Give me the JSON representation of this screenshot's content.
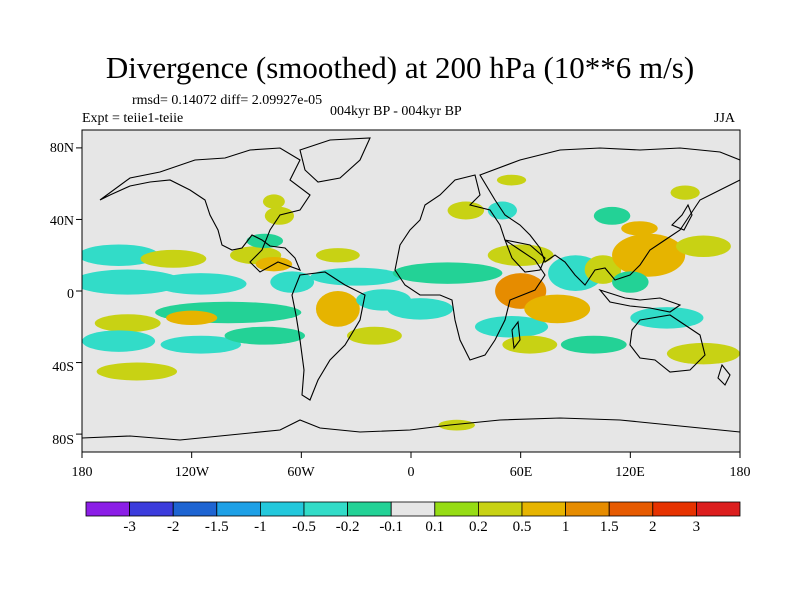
{
  "title": "Divergence (smoothed) at 200 hPa (10**6 m/s)",
  "stats_text": "rmsd= 0.14072 diff= 2.09927e-05",
  "expt_text": "Expt = teiie1-teiie",
  "period_text": "004kyr BP - 004kyr BP",
  "season_text": "JJA",
  "lat_ticks": [
    "80N",
    "40N",
    "0",
    "40S",
    "80S"
  ],
  "lon_ticks": [
    "180",
    "120W",
    "60W",
    "0",
    "60E",
    "120E",
    "180"
  ],
  "colorbar": {
    "labels": [
      "-3",
      "-2",
      "-1.5",
      "-1",
      "-0.5",
      "-0.2",
      "-0.1",
      "0.1",
      "0.2",
      "0.5",
      "1",
      "1.5",
      "2",
      "3"
    ],
    "colors": [
      "#8b1ee6",
      "#3c3cdc",
      "#1e64d2",
      "#1ea0e6",
      "#23c8dc",
      "#32dcc8",
      "#23d296",
      "#e6e6e6",
      "#96dc14",
      "#c8d214",
      "#e6b400",
      "#e68c00",
      "#e65a00",
      "#e63200",
      "#dc1e1e"
    ]
  },
  "map_colors": {
    "background": "#e6e6e6",
    "coast": "#000000"
  },
  "regions": [
    {
      "lon": -160,
      "lat": 20,
      "rx": 22,
      "ry": 6,
      "value": -0.5
    },
    {
      "lon": -130,
      "lat": 18,
      "rx": 18,
      "ry": 5,
      "value": 0.2
    },
    {
      "lon": -155,
      "lat": 5,
      "rx": 30,
      "ry": 7,
      "value": -0.5
    },
    {
      "lon": -115,
      "lat": 4,
      "rx": 25,
      "ry": 6,
      "value": -0.5
    },
    {
      "lon": -100,
      "lat": -12,
      "rx": 40,
      "ry": 6,
      "value": -0.2
    },
    {
      "lon": -155,
      "lat": -18,
      "rx": 18,
      "ry": 5,
      "value": 0.2
    },
    {
      "lon": -120,
      "lat": -15,
      "rx": 14,
      "ry": 4,
      "value": 0.5
    },
    {
      "lon": -160,
      "lat": -28,
      "rx": 20,
      "ry": 6,
      "value": -0.5
    },
    {
      "lon": -115,
      "lat": -30,
      "rx": 22,
      "ry": 5,
      "value": -0.5
    },
    {
      "lon": -80,
      "lat": -25,
      "rx": 22,
      "ry": 5,
      "value": -0.2
    },
    {
      "lon": -150,
      "lat": -45,
      "rx": 22,
      "ry": 5,
      "value": 0.2
    },
    {
      "lon": -85,
      "lat": 20,
      "rx": 14,
      "ry": 5,
      "value": 0.2
    },
    {
      "lon": -75,
      "lat": 15,
      "rx": 10,
      "ry": 4,
      "value": 0.5
    },
    {
      "lon": -65,
      "lat": 5,
      "rx": 12,
      "ry": 6,
      "value": -0.5
    },
    {
      "lon": -72,
      "lat": 42,
      "rx": 8,
      "ry": 5,
      "value": 0.2
    },
    {
      "lon": -80,
      "lat": 28,
      "rx": 10,
      "ry": 4,
      "value": -0.2
    },
    {
      "lon": -40,
      "lat": 20,
      "rx": 12,
      "ry": 4,
      "value": 0.2
    },
    {
      "lon": -30,
      "lat": 8,
      "rx": 25,
      "ry": 5,
      "value": -0.5
    },
    {
      "lon": -40,
      "lat": -10,
      "rx": 12,
      "ry": 10,
      "value": 0.5
    },
    {
      "lon": -15,
      "lat": -5,
      "rx": 15,
      "ry": 6,
      "value": -0.5
    },
    {
      "lon": -20,
      "lat": -25,
      "rx": 15,
      "ry": 5,
      "value": 0.2
    },
    {
      "lon": 5,
      "lat": -10,
      "rx": 18,
      "ry": 6,
      "value": -0.5
    },
    {
      "lon": 20,
      "lat": 10,
      "rx": 30,
      "ry": 6,
      "value": -0.2
    },
    {
      "lon": 30,
      "lat": 45,
      "rx": 10,
      "ry": 5,
      "value": 0.2
    },
    {
      "lon": 50,
      "lat": 45,
      "rx": 8,
      "ry": 5,
      "value": -0.5
    },
    {
      "lon": 60,
      "lat": 20,
      "rx": 18,
      "ry": 6,
      "value": 0.2
    },
    {
      "lon": 60,
      "lat": 0,
      "rx": 14,
      "ry": 10,
      "value": 1
    },
    {
      "lon": 55,
      "lat": -20,
      "rx": 20,
      "ry": 6,
      "value": -0.5
    },
    {
      "lon": 65,
      "lat": -30,
      "rx": 15,
      "ry": 5,
      "value": 0.2
    },
    {
      "lon": 90,
      "lat": 10,
      "rx": 15,
      "ry": 10,
      "value": -0.5
    },
    {
      "lon": 80,
      "lat": -10,
      "rx": 18,
      "ry": 8,
      "value": 0.5
    },
    {
      "lon": 105,
      "lat": 12,
      "rx": 10,
      "ry": 8,
      "value": 0.2
    },
    {
      "lon": 130,
      "lat": 20,
      "rx": 20,
      "ry": 12,
      "value": 0.5
    },
    {
      "lon": 120,
      "lat": 5,
      "rx": 10,
      "ry": 6,
      "value": -0.2
    },
    {
      "lon": 160,
      "lat": 25,
      "rx": 15,
      "ry": 6,
      "value": 0.2
    },
    {
      "lon": 110,
      "lat": 42,
      "rx": 10,
      "ry": 5,
      "value": -0.2
    },
    {
      "lon": 125,
      "lat": 35,
      "rx": 10,
      "ry": 4,
      "value": 0.5
    },
    {
      "lon": 150,
      "lat": 55,
      "rx": 8,
      "ry": 4,
      "value": 0.2
    },
    {
      "lon": 140,
      "lat": -15,
      "rx": 20,
      "ry": 6,
      "value": -0.5
    },
    {
      "lon": 100,
      "lat": -30,
      "rx": 18,
      "ry": 5,
      "value": -0.2
    },
    {
      "lon": 160,
      "lat": -35,
      "rx": 20,
      "ry": 6,
      "value": 0.2
    },
    {
      "lon": 25,
      "lat": -75,
      "rx": 10,
      "ry": 3,
      "value": 0.2
    },
    {
      "lon": 55,
      "lat": 62,
      "rx": 8,
      "ry": 3,
      "value": 0.2
    },
    {
      "lon": -75,
      "lat": 50,
      "rx": 6,
      "ry": 4,
      "value": 0.2
    }
  ]
}
